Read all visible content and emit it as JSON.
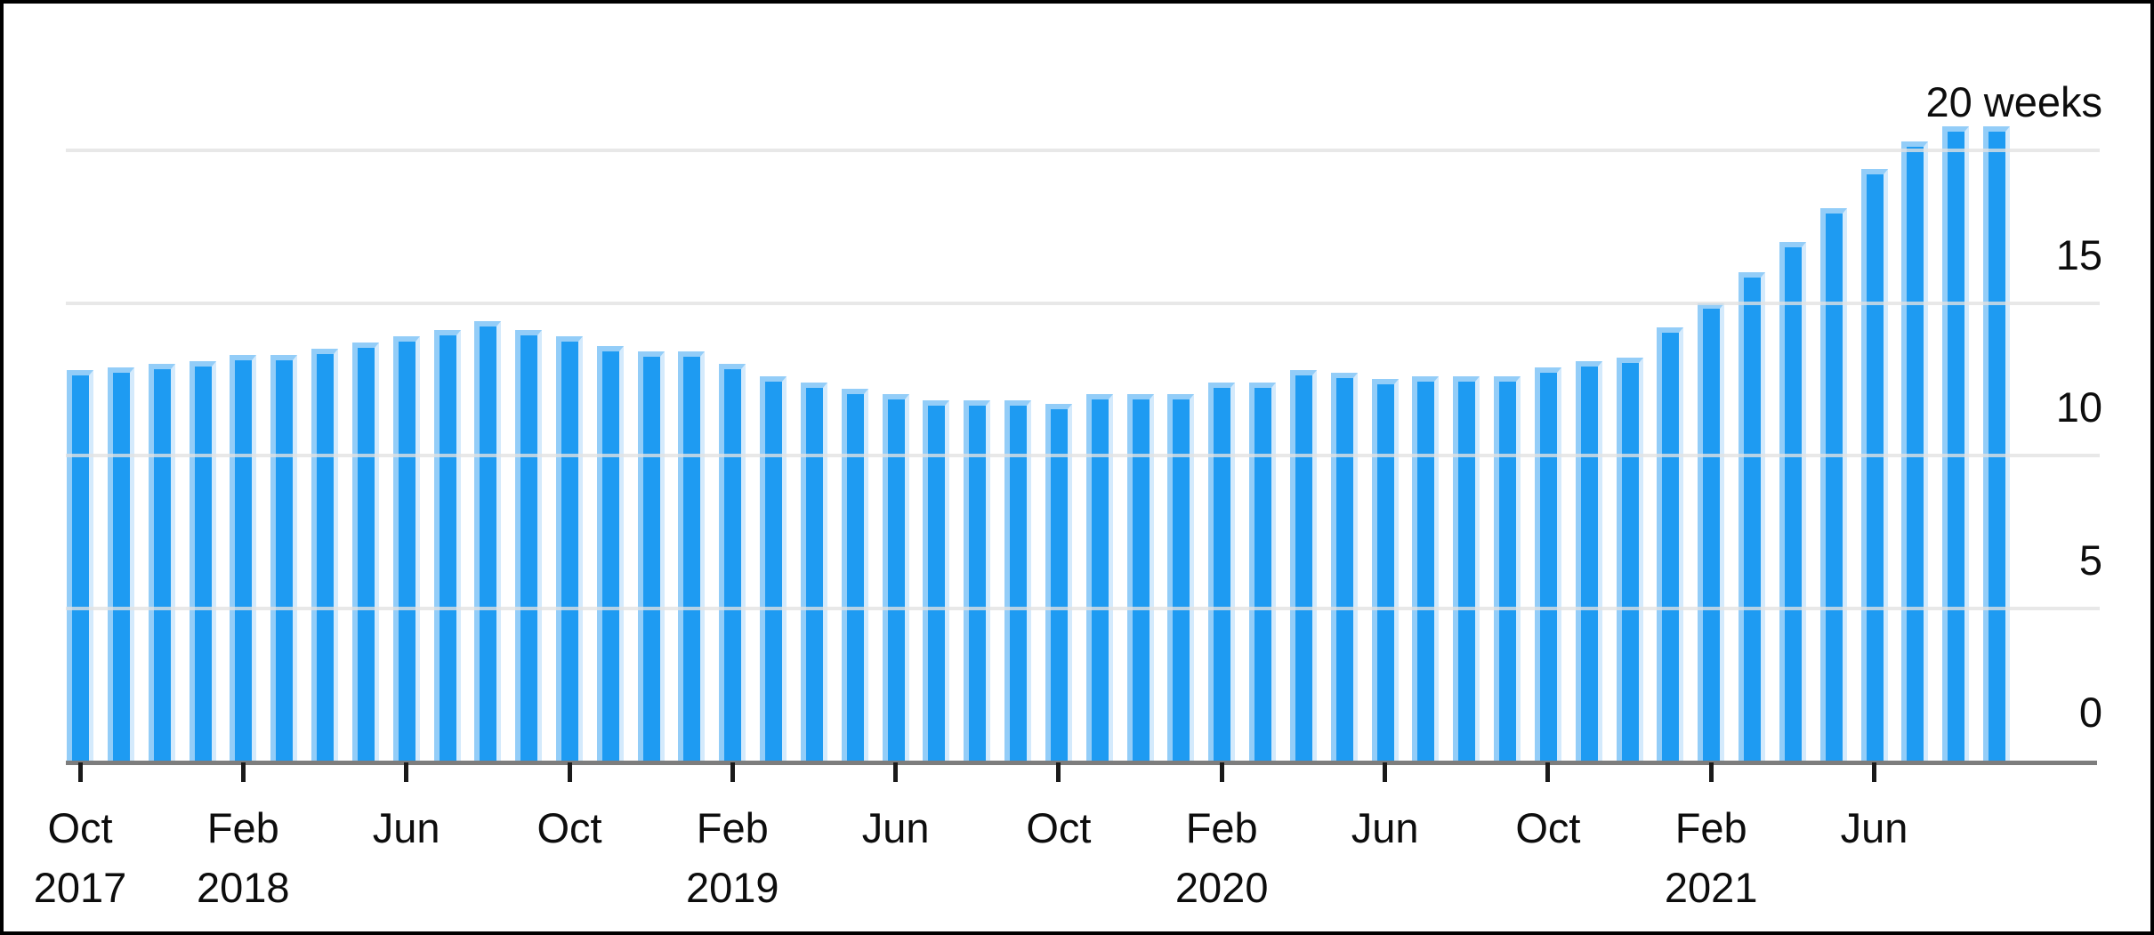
{
  "chart": {
    "top_axis_label": "20 weeks",
    "background_color": "#ffffff",
    "frame_color": "#000000"
  },
  "chart_data": {
    "type": "bar",
    "unit": "weeks",
    "bar_color": "#1e9bf2",
    "bar_highlight_color": "#93cdf8",
    "grid": true,
    "legend_position": "none",
    "ylim": [
      0,
      21
    ],
    "y_ticks": [
      0,
      5,
      10,
      15,
      20
    ],
    "y_tick_labels": [
      "0",
      "5",
      "10",
      "15",
      "20 weeks"
    ],
    "categories": [
      "Oct 2017",
      "Nov 2017",
      "Dec 2017",
      "Jan 2018",
      "Feb 2018",
      "Mar 2018",
      "Apr 2018",
      "May 2018",
      "Jun 2018",
      "Jul 2018",
      "Aug 2018",
      "Sep 2018",
      "Oct 2018",
      "Nov 2018",
      "Dec 2018",
      "Jan 2019",
      "Feb 2019",
      "Mar 2019",
      "Apr 2019",
      "May 2019",
      "Jun 2019",
      "Jul 2019",
      "Aug 2019",
      "Sep 2019",
      "Oct 2019",
      "Nov 2019",
      "Dec 2019",
      "Jan 2020",
      "Feb 2020",
      "Mar 2020",
      "Apr 2020",
      "May 2020",
      "Jun 2020",
      "Jul 2020",
      "Aug 2020",
      "Sep 2020",
      "Oct 2020",
      "Nov 2020",
      "Dec 2020",
      "Jan 2021",
      "Feb 2021",
      "Mar 2021",
      "Apr 2021",
      "May 2021",
      "Jun 2021",
      "Jul 2021",
      "Aug 2021",
      "Sep 2021"
    ],
    "values": [
      12.8,
      12.9,
      13.0,
      13.1,
      13.3,
      13.3,
      13.5,
      13.7,
      13.9,
      14.1,
      14.4,
      14.1,
      13.9,
      13.6,
      13.4,
      13.4,
      13.0,
      12.6,
      12.4,
      12.2,
      12.0,
      11.8,
      11.8,
      11.8,
      11.7,
      12.0,
      12.0,
      12.0,
      12.4,
      12.4,
      12.8,
      12.7,
      12.5,
      12.6,
      12.6,
      12.6,
      12.9,
      13.1,
      13.2,
      14.2,
      15.0,
      16.0,
      17.0,
      18.1,
      19.4,
      20.3,
      20.8,
      20.8
    ],
    "x_tick_labels": [
      {
        "index": 0,
        "month": "Oct",
        "year": "2017"
      },
      {
        "index": 4,
        "month": "Feb",
        "year": "2018"
      },
      {
        "index": 8,
        "month": "Jun",
        "year": ""
      },
      {
        "index": 12,
        "month": "Oct",
        "year": ""
      },
      {
        "index": 16,
        "month": "Feb",
        "year": "2019"
      },
      {
        "index": 20,
        "month": "Jun",
        "year": ""
      },
      {
        "index": 24,
        "month": "Oct",
        "year": ""
      },
      {
        "index": 28,
        "month": "Feb",
        "year": "2020"
      },
      {
        "index": 32,
        "month": "Jun",
        "year": ""
      },
      {
        "index": 36,
        "month": "Oct",
        "year": ""
      },
      {
        "index": 40,
        "month": "Feb",
        "year": "2021"
      },
      {
        "index": 44,
        "month": "Jun",
        "year": ""
      }
    ]
  }
}
